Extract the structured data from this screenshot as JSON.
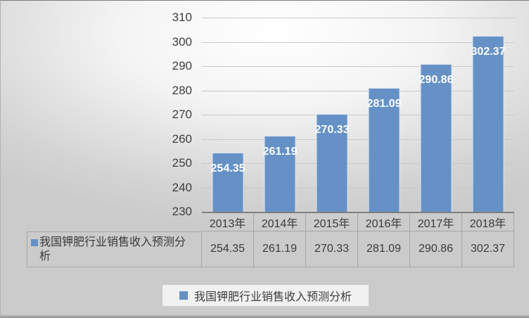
{
  "chart_data": {
    "type": "bar",
    "title": "",
    "categories": [
      "2013年",
      "2014年",
      "2015年",
      "2016年",
      "2017年",
      "2018年"
    ],
    "series": [
      {
        "name": "我国钾肥行业销售收入预测分析",
        "values": [
          254.35,
          261.19,
          270.33,
          281.09,
          290.86,
          302.37
        ]
      }
    ],
    "value_labels": [
      "254.35",
      "261.19",
      "270.33",
      "281.09",
      "290.86",
      "302.37"
    ],
    "ylim": [
      230,
      310
    ],
    "ytick_labels": [
      "310",
      "300",
      "290",
      "280",
      "270",
      "260",
      "250",
      "240",
      "230"
    ],
    "grid": true,
    "data_labels_position": "inside-end",
    "legend_position": "bottom",
    "colors": {
      "bar": "#6591c6",
      "bar_border": "rgba(255,255,255,0.75)",
      "data_label": "#ffffff",
      "gridline": "#c9c9c9",
      "axis_text": "#3d3d3d"
    }
  },
  "table": {
    "row_header": "我国钾肥行业销售收入预测分析",
    "columns": [
      "2013年",
      "2014年",
      "2015年",
      "2016年",
      "2017年",
      "2018年"
    ],
    "values": [
      "254.35",
      "261.19",
      "270.33",
      "281.09",
      "290.86",
      "302.37"
    ]
  },
  "legend": {
    "label": "我国钾肥行业销售收入预测分析",
    "marker_color": "#6591c6"
  }
}
